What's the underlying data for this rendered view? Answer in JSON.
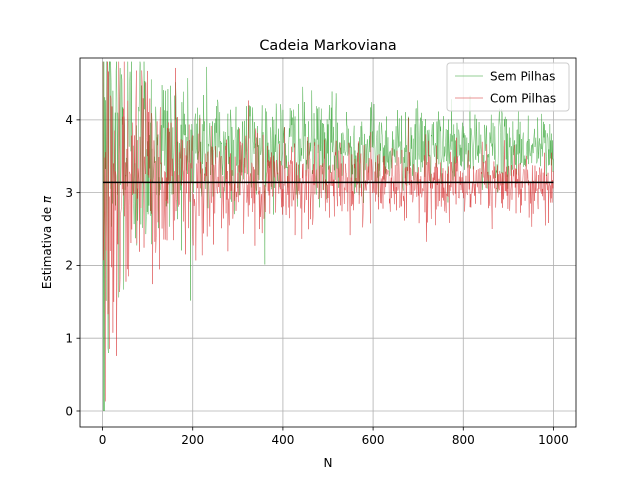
{
  "chart_data": {
    "type": "line",
    "title": "Cadeia Markoviana",
    "xlabel": "N",
    "ylabel_prefix": "Estimativa de ",
    "ylabel_symbol": "π",
    "xlim": [
      -50,
      1050
    ],
    "ylim": [
      -0.22,
      4.85
    ],
    "xticks": [
      0,
      200,
      400,
      600,
      800,
      1000
    ],
    "yticks": [
      0,
      1,
      2,
      3,
      4
    ],
    "grid": true,
    "legend_position": "top-right",
    "n_points": 1000,
    "reference_line": {
      "value": 3.14159,
      "x_range": [
        1,
        1000
      ],
      "color": "#000000"
    },
    "series": [
      {
        "name": "Sem Pilhas",
        "color": "#2ca02c",
        "final_mean": 3.62,
        "noise_amplitude_at_end": 0.2,
        "range_observed": [
          0.0,
          4.62
        ]
      },
      {
        "name": "Com Pilhas",
        "color": "#d62728",
        "final_mean": 3.14,
        "noise_amplitude_at_end": 0.18,
        "range_observed": [
          0.0,
          4.0
        ]
      }
    ]
  }
}
